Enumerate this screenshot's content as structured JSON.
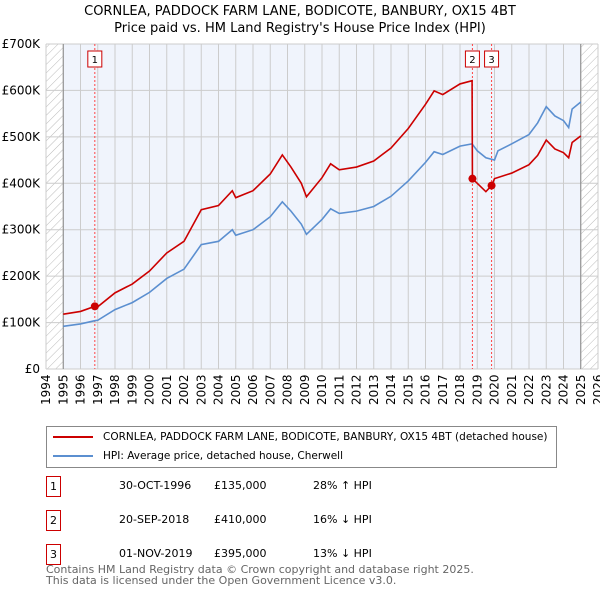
{
  "chart_data": {
    "type": "line",
    "title": "CORNLEA, PADDOCK FARM LANE, BODICOTE, BANBURY, OX15 4BT",
    "subtitle": "Price paid vs. HM Land Registry's House Price Index (HPI)",
    "xlim": [
      1994,
      2026
    ],
    "ylim": [
      0,
      700000
    ],
    "x_ticks": [
      "1994",
      "1995",
      "1996",
      "1997",
      "1998",
      "1999",
      "2000",
      "2001",
      "2002",
      "2003",
      "2004",
      "2005",
      "2006",
      "2007",
      "2008",
      "2009",
      "2010",
      "2011",
      "2012",
      "2013",
      "2014",
      "2015",
      "2016",
      "2017",
      "2018",
      "2019",
      "2020",
      "2021",
      "2022",
      "2023",
      "2024",
      "2025",
      "2026"
    ],
    "y_ticks": [
      {
        "v": 0,
        "label": "£0"
      },
      {
        "v": 100000,
        "label": "£100K"
      },
      {
        "v": 200000,
        "label": "£200K"
      },
      {
        "v": 300000,
        "label": "£300K"
      },
      {
        "v": 400000,
        "label": "£400K"
      },
      {
        "v": 500000,
        "label": "£500K"
      },
      {
        "v": 600000,
        "label": "£600K"
      },
      {
        "v": 700000,
        "label": "£700K"
      }
    ],
    "grid": true,
    "hatched_ranges": [
      [
        1994,
        1995
      ],
      [
        2025,
        2026
      ]
    ],
    "series": [
      {
        "name": "CORNLEA, PADDOCK FARM LANE, BODICOTE, BANBURY, OX15 4BT (detached house)",
        "color": "#cc0000",
        "x": [
          1995,
          1996,
          1996.83,
          1997,
          1998,
          1999,
          2000,
          2001,
          2002,
          2003,
          2004,
          2004.8,
          2005,
          2006,
          2007,
          2007.7,
          2008.2,
          2008.8,
          2009.1,
          2010,
          2010.5,
          2011,
          2012,
          2013,
          2014,
          2015,
          2016,
          2016.5,
          2017,
          2018,
          2018.7,
          2018.72,
          2019,
          2019.5,
          2019.83,
          2020,
          2021,
          2022,
          2022.5,
          2023,
          2023.5,
          2024,
          2024.3,
          2024.5,
          2025
        ],
        "y": [
          118000,
          124000,
          135000,
          134000,
          164000,
          183000,
          211000,
          250000,
          275000,
          343000,
          352000,
          384000,
          369000,
          384000,
          420000,
          461000,
          435000,
          400000,
          371000,
          412000,
          442000,
          429000,
          435000,
          448000,
          476000,
          518000,
          570000,
          599000,
          591000,
          614000,
          621000,
          410000,
          400000,
          382000,
          395000,
          410000,
          422000,
          440000,
          460000,
          493000,
          474000,
          466000,
          455000,
          488000,
          502000
        ]
      },
      {
        "name": "HPI: Average price, detached house, Cherwell",
        "color": "#5b8fd0",
        "x": [
          1995,
          1996,
          1996.83,
          1997,
          1998,
          1999,
          2000,
          2001,
          2002,
          2003,
          2004,
          2004.8,
          2005,
          2006,
          2007,
          2007.7,
          2008.2,
          2008.8,
          2009.1,
          2010,
          2010.5,
          2011,
          2012,
          2013,
          2014,
          2015,
          2016,
          2016.5,
          2017,
          2018,
          2018.7,
          2019,
          2019.5,
          2020,
          2020.2,
          2021,
          2022,
          2022.5,
          2023,
          2023.5,
          2024,
          2024.3,
          2024.5,
          2025
        ],
        "y": [
          92000,
          97000,
          104000,
          105000,
          128000,
          143000,
          165000,
          195000,
          215000,
          268000,
          275000,
          300000,
          288000,
          300000,
          328000,
          360000,
          340000,
          312000,
          290000,
          322000,
          345000,
          335000,
          340000,
          350000,
          372000,
          405000,
          445000,
          468000,
          462000,
          480000,
          485000,
          470000,
          455000,
          450000,
          470000,
          485000,
          505000,
          530000,
          565000,
          545000,
          535000,
          520000,
          560000,
          575000
        ]
      }
    ],
    "sales": [
      {
        "n": "1",
        "x": 1996.83,
        "y": 135000,
        "date": "30-OCT-1996",
        "price": "£135,000",
        "hpi": "28% ↑ HPI"
      },
      {
        "n": "2",
        "x": 2018.72,
        "y": 410000,
        "date": "20-SEP-2018",
        "price": "£410,000",
        "hpi": "16% ↓ HPI"
      },
      {
        "n": "3",
        "x": 2019.83,
        "y": 395000,
        "date": "01-NOV-2019",
        "price": "£395,000",
        "hpi": "13% ↓ HPI"
      }
    ]
  },
  "footer": {
    "line1": "Contains HM Land Registry data © Crown copyright and database right 2025.",
    "line2": "This data is licensed under the Open Government Licence v3.0."
  }
}
